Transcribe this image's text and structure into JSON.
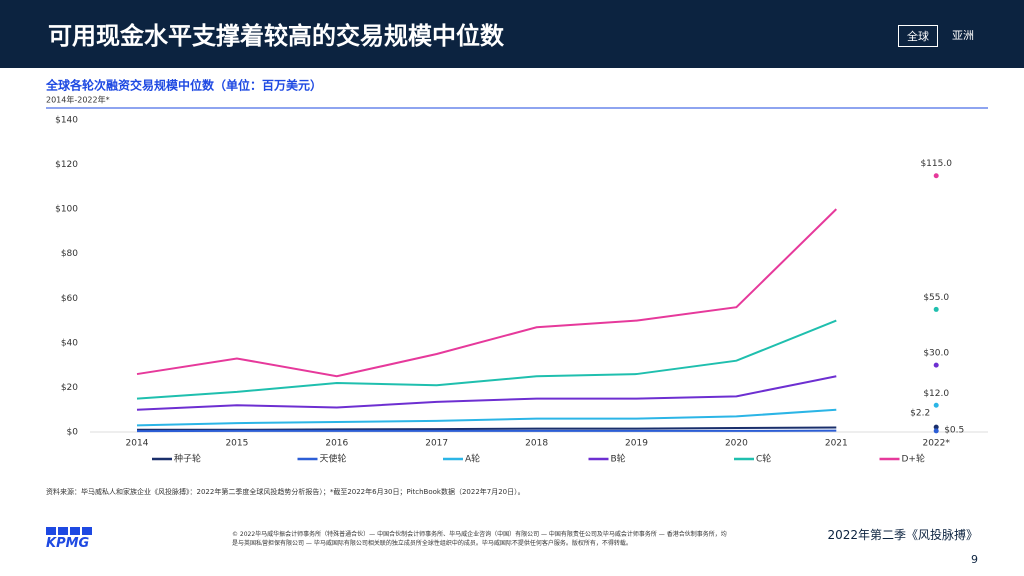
{
  "header": {
    "title": "可用现金水平支撑着较高的交易规模中位数",
    "tabs": [
      "全球",
      "亚洲"
    ]
  },
  "chart_data": {
    "type": "line",
    "title": "全球各轮次融资交易规模中位数（单位：百万美元）",
    "subtitle": "2014年-2022年*",
    "categories": [
      "2014",
      "2015",
      "2016",
      "2017",
      "2018",
      "2019",
      "2020",
      "2021",
      "2022*"
    ],
    "isolated_last": true,
    "grid": false,
    "ylim": [
      0,
      140
    ],
    "yticks": [
      {
        "value": 0,
        "label": "$0"
      },
      {
        "value": 20,
        "label": "$20"
      },
      {
        "value": 40,
        "label": "$40"
      },
      {
        "value": 60,
        "label": "$60"
      },
      {
        "value": 80,
        "label": "$80"
      },
      {
        "value": 100,
        "label": "$100"
      },
      {
        "value": 120,
        "label": "$120"
      },
      {
        "value": 140,
        "label": "$140"
      }
    ],
    "series": [
      {
        "name": "种子轮",
        "color": "#1a2f6b",
        "values": [
          1,
          1,
          1.2,
          1.3,
          1.5,
          1.5,
          1.8,
          2,
          2.2
        ],
        "value_labels": [
          null,
          null,
          null,
          null,
          null,
          null,
          null,
          null,
          "$2.2"
        ]
      },
      {
        "name": "天使轮",
        "color": "#2c5ed6",
        "values": [
          0.4,
          0.5,
          0.5,
          0.5,
          0.5,
          0.5,
          0.5,
          0.6,
          0.5
        ],
        "value_labels": [
          null,
          null,
          null,
          null,
          null,
          null,
          null,
          null,
          "$0.5"
        ]
      },
      {
        "name": "A轮",
        "color": "#2bb5e6",
        "values": [
          3,
          4,
          4.5,
          5,
          6,
          6,
          7,
          10,
          12
        ],
        "value_labels": [
          null,
          null,
          null,
          null,
          null,
          null,
          null,
          null,
          "$12.0"
        ]
      },
      {
        "name": "B轮",
        "color": "#6d2fd1",
        "values": [
          10,
          12,
          11,
          13.5,
          15,
          15,
          16,
          25,
          30
        ],
        "value_labels": [
          null,
          null,
          null,
          null,
          null,
          null,
          null,
          null,
          "$30.0"
        ]
      },
      {
        "name": "C轮",
        "color": "#1fbfae",
        "values": [
          15,
          18,
          22,
          21,
          25,
          26,
          32,
          50,
          55
        ],
        "value_labels": [
          null,
          null,
          null,
          null,
          null,
          null,
          null,
          null,
          "$55.0"
        ]
      },
      {
        "name": "D+轮",
        "color": "#e6399b",
        "values": [
          26,
          33,
          25,
          35,
          47,
          50,
          56,
          100,
          115
        ],
        "value_labels": [
          null,
          null,
          null,
          null,
          null,
          null,
          null,
          null,
          "$115.0"
        ]
      }
    ]
  },
  "source": "资料来源：毕马威私人和家族企业《风投脉搏》：2022年第二季度全球风投趋势分析报告）；*截至2022年6月30日；PitchBook数据（2022年7月20日）。",
  "footer": {
    "brand": "KPMG",
    "legal": "© 2022毕马威华振会计师事务所（特殊普通合伙）— 中国合伙制会计师事务所、毕马威企业咨询（中国）有限公司 — 中国有限责任公司及毕马威会计师事务所 — 香港合伙制事务所，均是与英国私营担保有限公司 — 毕马威国际有限公司相关联的独立成员所全球性组织中的成员。毕马威国际不提供任何客户服务。版权所有，不得转载。",
    "publication": "2022年第二季《风投脉搏》",
    "page": 9
  }
}
